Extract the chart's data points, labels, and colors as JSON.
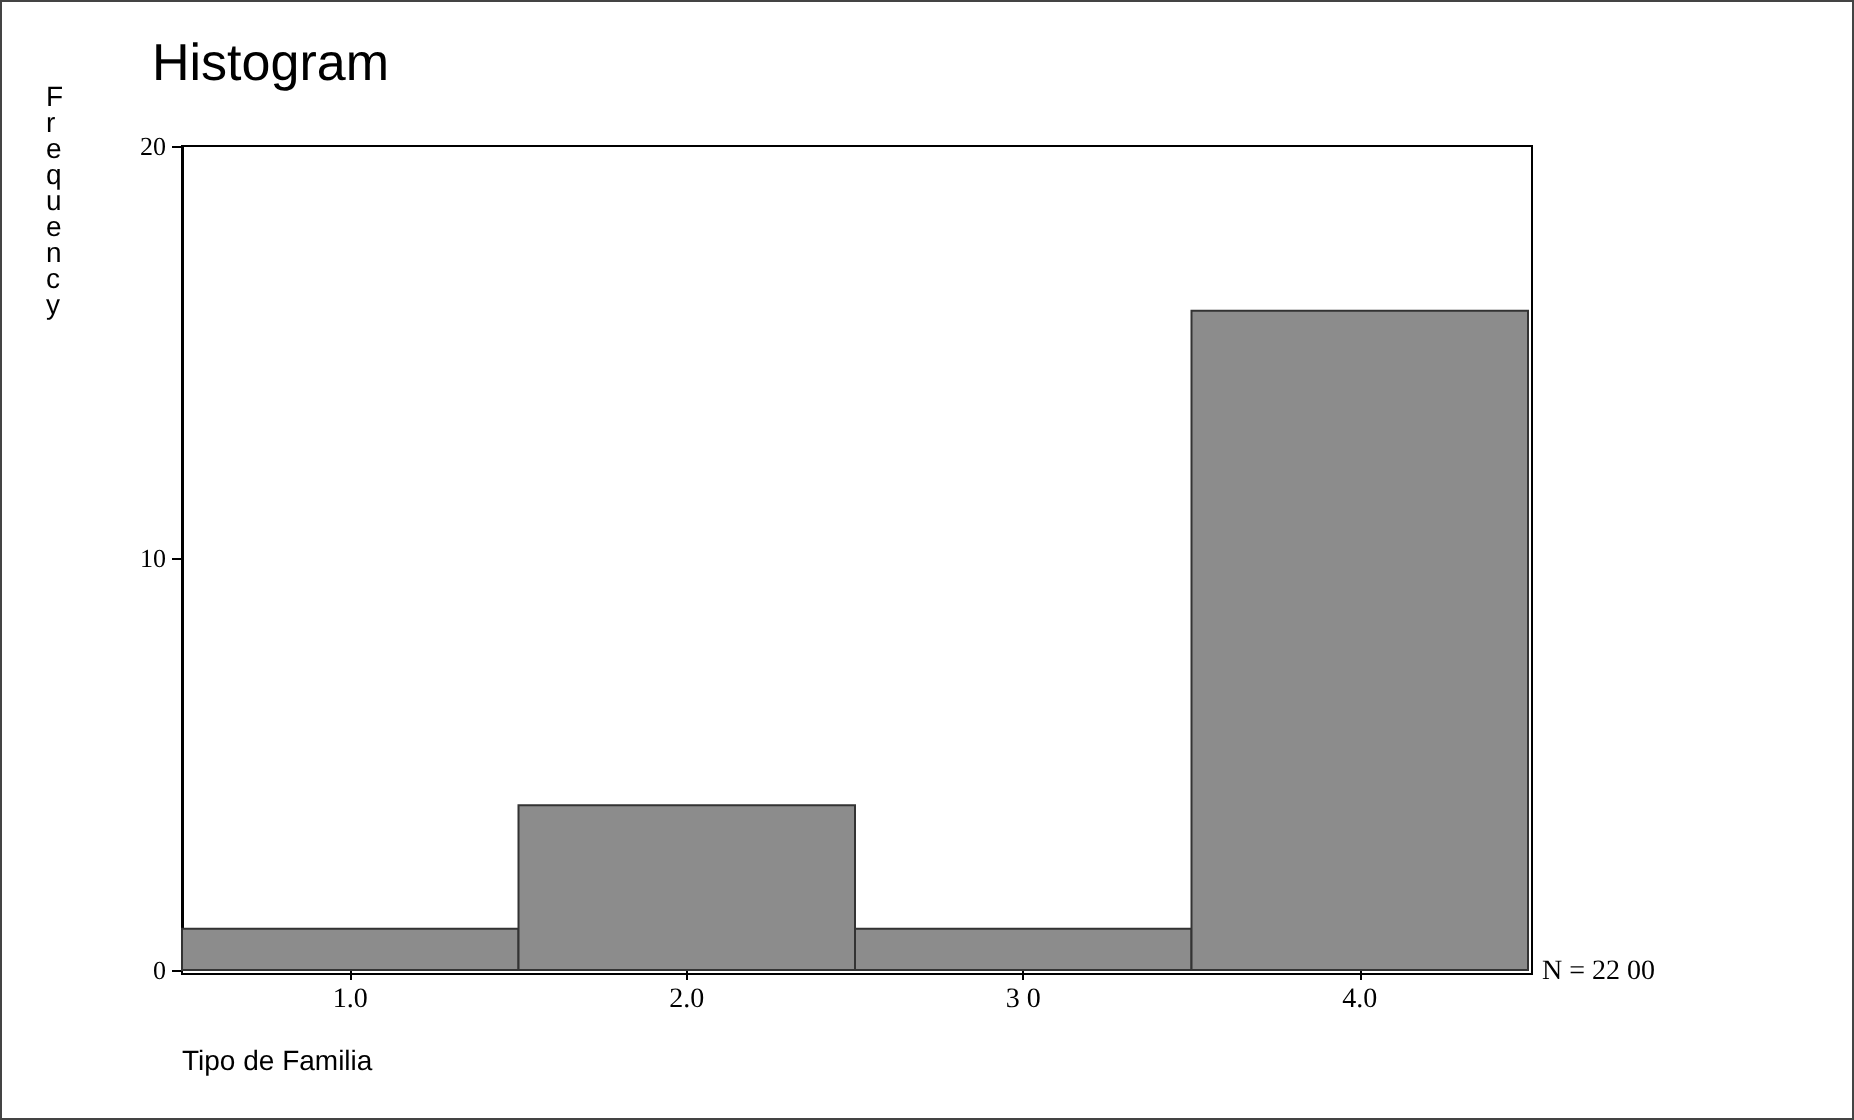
{
  "chart_data": {
    "type": "histogram",
    "title": "Histogram",
    "xlabel": "Tipo de Familia",
    "ylabel": "Frequency",
    "bins": [
      0.5,
      1.5,
      2.5,
      3.5,
      4.5
    ],
    "values": [
      1,
      4,
      1,
      16
    ],
    "color": "#8c8c8c",
    "xlim": [
      0.5,
      4.5
    ],
    "xticks": [
      {
        "value": 1,
        "label": "1.0"
      },
      {
        "value": 2,
        "label": "2.0"
      },
      {
        "value": 3,
        "label": "3 0"
      },
      {
        "value": 4,
        "label": "4.0"
      }
    ],
    "ylim": [
      0,
      20
    ],
    "yticks": [
      0,
      10,
      20
    ],
    "grid": false,
    "annotations": [
      "N = 22 00"
    ]
  }
}
